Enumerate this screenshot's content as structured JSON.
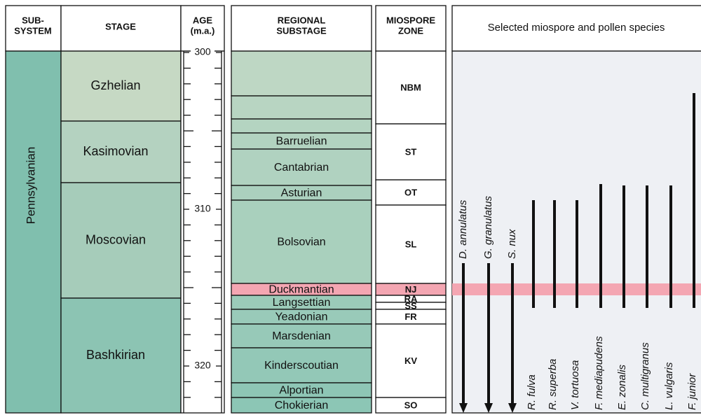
{
  "header": {
    "subsystem": [
      "SUB-",
      "SYSTEM"
    ],
    "stage": "STAGE",
    "age": [
      "AGE",
      "(m.a.)"
    ],
    "substage": [
      "REGIONAL",
      "SUBSTAGE"
    ],
    "zone": [
      "MIOSPORE",
      "ZONE"
    ],
    "species": "Selected miospore and pollen species"
  },
  "subsystem": "Pennsylvanian",
  "stages": [
    "Gzhelian",
    "Kasimovian",
    "Moscovian",
    "Bashkirian"
  ],
  "age_ticks": [
    300,
    310,
    320
  ],
  "substages": [
    "Barruelian",
    "Cantabrian",
    "Asturian",
    "Bolsovian",
    "Duckmantian",
    "Langsettian",
    "Yeadonian",
    "Marsdenian",
    "Kinderscoutian",
    "Alportian",
    "Chokierian"
  ],
  "zones": [
    "NBM",
    "ST",
    "OT",
    "SL",
    "NJ",
    "RA",
    "SS",
    "FR",
    "KV",
    "SO"
  ],
  "species": [
    "D. annulatus",
    "G. granulatus",
    "S. nux",
    "R. fulva",
    "R. superba",
    "V. tortuosa",
    "F. mediapudens",
    "E. zonalis",
    "C. multigranus",
    "L. vulgaris",
    "F. junior"
  ]
}
